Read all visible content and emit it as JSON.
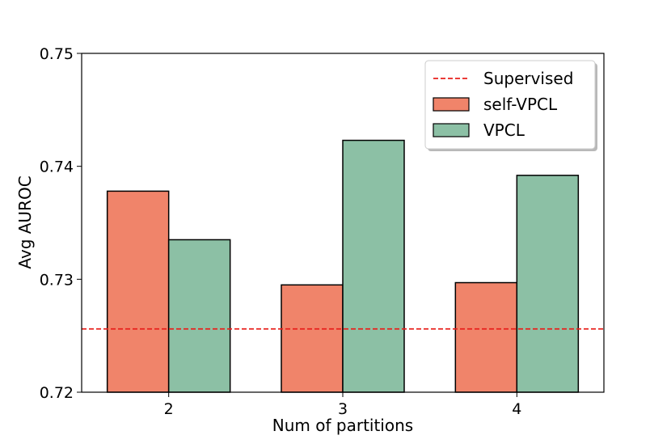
{
  "chart_data": {
    "type": "bar",
    "title": "",
    "xlabel": "Num of partitions",
    "ylabel": "Avg AUROC",
    "categories": [
      "2",
      "3",
      "4"
    ],
    "series": [
      {
        "name": "self-VPCL",
        "color": "#f0846a",
        "values": [
          0.7378,
          0.7295,
          0.7297
        ]
      },
      {
        "name": "VPCL",
        "color": "#8cc0a5",
        "values": [
          0.7335,
          0.7423,
          0.7392
        ]
      }
    ],
    "reference_lines": [
      {
        "name": "Supervised",
        "value": 0.7256,
        "color": "#e8201c",
        "style": "dashed"
      }
    ],
    "ylim": [
      0.72,
      0.75
    ],
    "yticks": [
      "0.72",
      "0.73",
      "0.74",
      "0.75"
    ],
    "grid": false,
    "legend_position": "top-right"
  }
}
